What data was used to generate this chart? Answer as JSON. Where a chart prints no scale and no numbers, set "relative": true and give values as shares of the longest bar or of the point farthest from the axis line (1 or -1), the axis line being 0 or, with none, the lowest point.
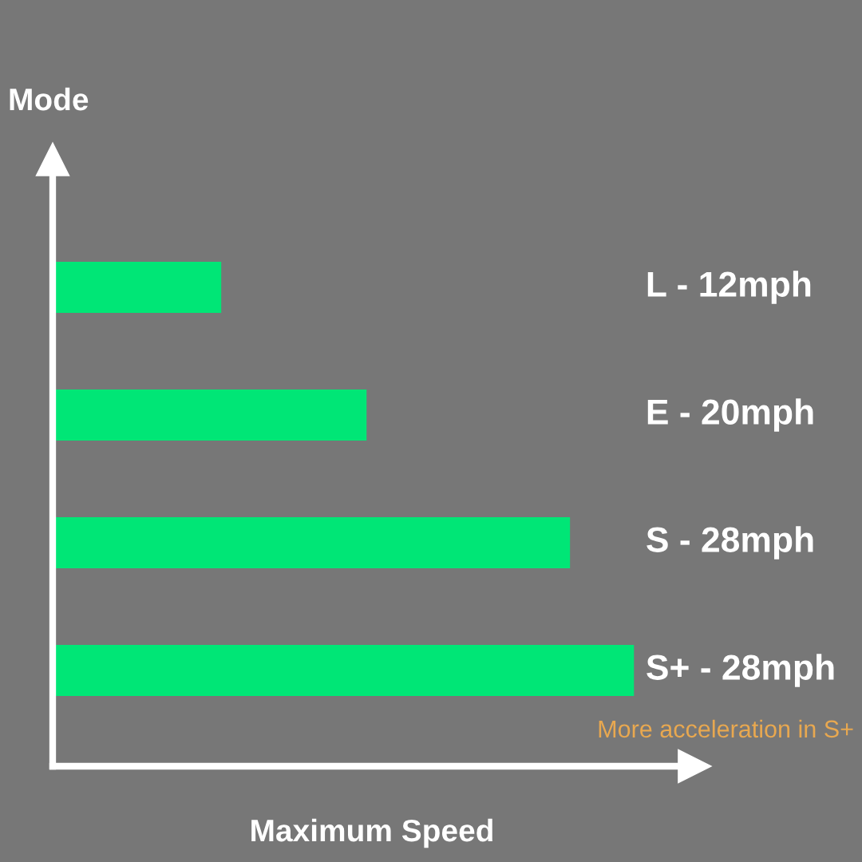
{
  "chart_data": {
    "type": "bar",
    "orientation": "horizontal",
    "relative": true,
    "categories": [
      "L - 12mph",
      "E - 20mph",
      "S - 28mph",
      "S+ - 28mph"
    ],
    "values": [
      0.29,
      0.54,
      0.89,
      1.0
    ],
    "color": "#00e676",
    "xlabel": "Maximum Speed",
    "ylabel": "Mode",
    "annotations": [
      "More acceleration in S+"
    ],
    "legend": false
  }
}
